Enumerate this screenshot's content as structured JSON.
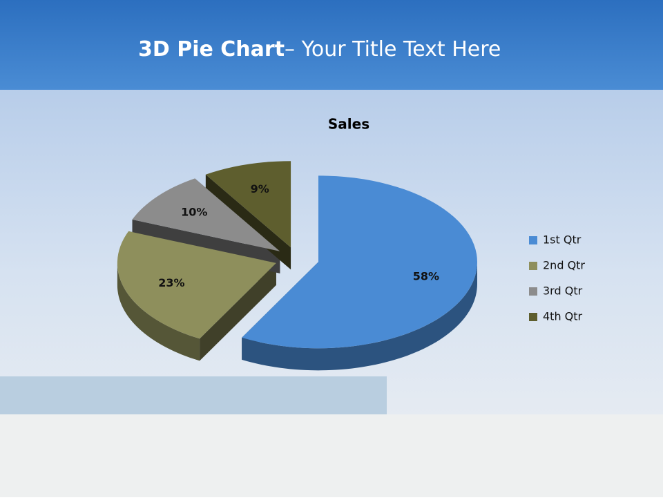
{
  "slide": {
    "title_bold": "3D Pie Chart",
    "title_rest": "– Your Title Text Here"
  },
  "chart_data": {
    "type": "pie",
    "title": "Sales",
    "categories": [
      "1st Qtr",
      "2nd Qtr",
      "3rd Qtr",
      "4th Qtr"
    ],
    "values": [
      58,
      23,
      10,
      9
    ],
    "value_labels": [
      "58%",
      "23%",
      "10%",
      "9%"
    ],
    "colors": [
      "#4a8bd4",
      "#8e8f5c",
      "#8c8c8c",
      "#5e5e2e"
    ],
    "legend": "right"
  }
}
